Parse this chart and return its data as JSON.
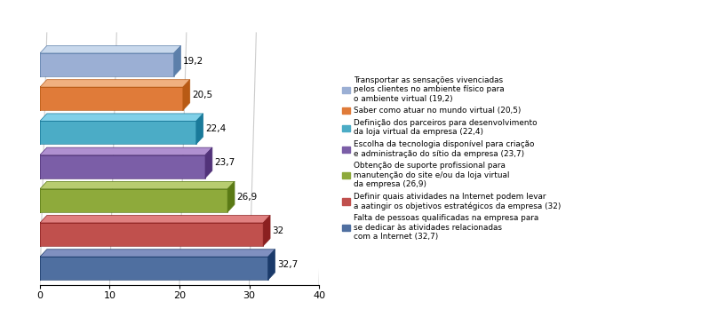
{
  "values": [
    19.2,
    20.5,
    22.4,
    23.7,
    26.9,
    32.0,
    32.7
  ],
  "labels": [
    "19,2",
    "20,5",
    "22,4",
    "23,7",
    "26,9",
    "32",
    "32,7"
  ],
  "colors": [
    "#9bafd4",
    "#e07b39",
    "#4bacc6",
    "#7b5ea7",
    "#8eaa3b",
    "#c0504d",
    "#4f6fa0"
  ],
  "dark_colors": [
    "#5c7faa",
    "#b85a15",
    "#1a7a9a",
    "#52337a",
    "#5a7a15",
    "#8b2020",
    "#1a3a6a"
  ],
  "light_colors": [
    "#c8d8ec",
    "#f0b080",
    "#80d0e8",
    "#b090d0",
    "#b8cc70",
    "#e08080",
    "#8090c0"
  ],
  "legend_labels": [
    "Transportar as sensações vivenciadas\npelos clientes no ambiente físico para\no ambiente virtual (19,2)",
    "Saber como atuar no mundo virtual (20,5)",
    "Definição dos parceiros para desenvolvimento\nda loja virtual da empresa (22,4)",
    "Escolha da tecnologia disponível para criação\ne administração do sítio da empresa (23,7)",
    "Obtenção de suporte profissional para\nmanutenção do site e/ou da loja virtual\nda empresa (26,9)",
    "Definir quais atividades na Internet podem levar\na aatingir os objetivos estratégicos da empresa (32)",
    "Falta de pessoas qualificadas na empresa para\nse dedicar às atividades relacionadas\ncom a Internet (32,7)"
  ],
  "xlim": [
    0,
    40
  ],
  "xticks": [
    0,
    10,
    20,
    30,
    40
  ],
  "figsize": [
    8.16,
    3.57
  ],
  "dpi": 100
}
